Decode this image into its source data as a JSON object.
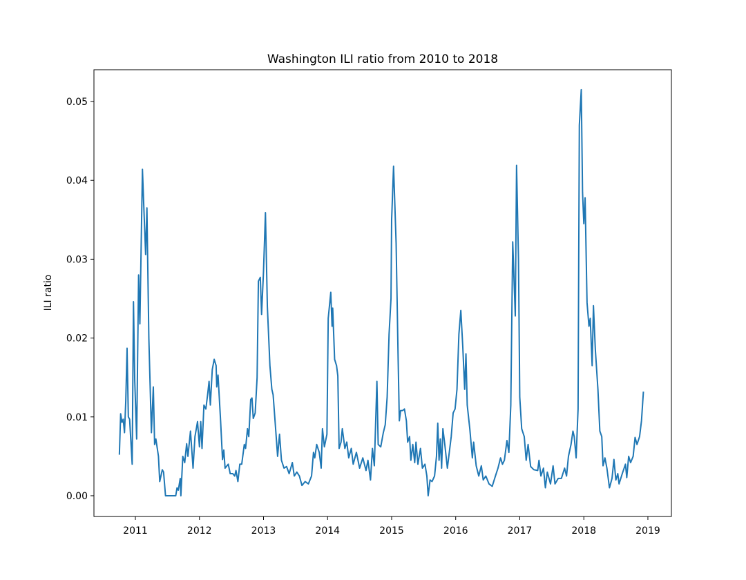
{
  "chart_data": {
    "type": "line",
    "title": "Washington ILI ratio from 2010 to 2018",
    "y_label": "ILI ratio",
    "x": [
      2010.75,
      2010.77,
      2010.79,
      2010.81,
      2010.83,
      2010.85,
      2010.87,
      2010.89,
      2010.91,
      2010.95,
      2010.97,
      2010.99,
      2011.02,
      2011.05,
      2011.07,
      2011.11,
      2011.13,
      2011.16,
      2011.18,
      2011.21,
      2011.25,
      2011.28,
      2011.3,
      2011.32,
      2011.36,
      2011.38,
      2011.42,
      2011.44,
      2011.47,
      2011.55,
      2011.63,
      2011.65,
      2011.67,
      2011.7,
      2011.71,
      2011.74,
      2011.77,
      2011.8,
      2011.82,
      2011.86,
      2011.9,
      2011.93,
      2011.97,
      2012.0,
      2012.02,
      2012.04,
      2012.07,
      2012.1,
      2012.13,
      2012.15,
      2012.17,
      2012.2,
      2012.23,
      2012.26,
      2012.27,
      2012.29,
      2012.33,
      2012.36,
      2012.38,
      2012.4,
      2012.45,
      2012.48,
      2012.52,
      2012.55,
      2012.57,
      2012.6,
      2012.63,
      2012.66,
      2012.7,
      2012.72,
      2012.75,
      2012.77,
      2012.8,
      2012.82,
      2012.84,
      2012.87,
      2012.9,
      2012.92,
      2012.95,
      2012.97,
      2013.0,
      2013.03,
      2013.06,
      2013.1,
      2013.13,
      2013.15,
      2013.18,
      2013.22,
      2013.25,
      2013.28,
      2013.32,
      2013.36,
      2013.4,
      2013.45,
      2013.48,
      2013.52,
      2013.56,
      2013.6,
      2013.65,
      2013.7,
      2013.75,
      2013.78,
      2013.8,
      2013.83,
      2013.87,
      2013.9,
      2013.92,
      2013.95,
      2013.99,
      2014.01,
      2014.05,
      2014.07,
      2014.08,
      2014.11,
      2014.14,
      2014.16,
      2014.18,
      2014.21,
      2014.23,
      2014.27,
      2014.3,
      2014.33,
      2014.37,
      2014.4,
      2014.45,
      2014.5,
      2014.55,
      2014.6,
      2014.63,
      2014.67,
      2014.7,
      2014.73,
      2014.77,
      2014.79,
      2014.83,
      2014.87,
      2014.9,
      2014.93,
      2014.96,
      2014.99,
      2015.0,
      2015.03,
      2015.07,
      2015.1,
      2015.12,
      2015.14,
      2015.17,
      2015.2,
      2015.23,
      2015.25,
      2015.28,
      2015.3,
      2015.33,
      2015.36,
      2015.38,
      2015.41,
      2015.45,
      2015.48,
      2015.52,
      2015.55,
      2015.57,
      2015.6,
      2015.63,
      2015.67,
      2015.7,
      2015.72,
      2015.74,
      2015.76,
      2015.78,
      2015.8,
      2015.83,
      2015.87,
      2015.9,
      2015.93,
      2015.96,
      2015.99,
      2016.02,
      2016.05,
      2016.08,
      2016.11,
      2016.14,
      2016.16,
      2016.18,
      2016.22,
      2016.26,
      2016.28,
      2016.32,
      2016.36,
      2016.4,
      2016.43,
      2016.47,
      2016.52,
      2016.57,
      2016.62,
      2016.66,
      2016.7,
      2016.73,
      2016.76,
      2016.8,
      2016.83,
      2016.86,
      2016.89,
      2016.93,
      2016.95,
      2016.98,
      2017.0,
      2017.03,
      2017.07,
      2017.1,
      2017.13,
      2017.17,
      2017.22,
      2017.28,
      2017.3,
      2017.33,
      2017.37,
      2017.4,
      2017.43,
      2017.48,
      2017.52,
      2017.55,
      2017.6,
      2017.65,
      2017.7,
      2017.73,
      2017.76,
      2017.8,
      2017.83,
      2017.85,
      2017.88,
      2017.91,
      2017.93,
      2017.96,
      2017.98,
      2018.0,
      2018.02,
      2018.05,
      2018.08,
      2018.1,
      2018.13,
      2018.15,
      2018.18,
      2018.22,
      2018.25,
      2018.28,
      2018.3,
      2018.33,
      2018.36,
      2018.4,
      2018.44,
      2018.47,
      2018.5,
      2018.53,
      2018.55,
      2018.6,
      2018.65,
      2018.67,
      2018.7,
      2018.73,
      2018.77,
      2018.8,
      2018.83,
      2018.87,
      2018.9,
      2018.93
    ],
    "series": [
      {
        "color": "#1f77b4",
        "values": [
          0.0052,
          0.0104,
          0.0093,
          0.0097,
          0.008,
          0.012,
          0.0187,
          0.01,
          0.0097,
          0.004,
          0.0246,
          0.0146,
          0.0072,
          0.028,
          0.0218,
          0.0414,
          0.037,
          0.0306,
          0.0365,
          0.02,
          0.008,
          0.0138,
          0.0065,
          0.0072,
          0.005,
          0.0018,
          0.0033,
          0.003,
          0,
          0,
          0,
          0.001,
          0.0007,
          0.0022,
          0,
          0.005,
          0.0042,
          0.0066,
          0.005,
          0.0082,
          0.0035,
          0.0075,
          0.0094,
          0.0062,
          0.0094,
          0.006,
          0.0115,
          0.011,
          0.013,
          0.0145,
          0.0115,
          0.016,
          0.0173,
          0.0165,
          0.0138,
          0.0153,
          0.0095,
          0.0046,
          0.0058,
          0.0035,
          0.004,
          0.0028,
          0.0028,
          0.0025,
          0.0032,
          0.0018,
          0.004,
          0.004,
          0.0065,
          0.006,
          0.0085,
          0.0075,
          0.0122,
          0.0124,
          0.0098,
          0.0105,
          0.015,
          0.0272,
          0.0277,
          0.023,
          0.0285,
          0.0359,
          0.024,
          0.0165,
          0.0135,
          0.0128,
          0.0095,
          0.005,
          0.0078,
          0.0045,
          0.0035,
          0.0037,
          0.0028,
          0.0042,
          0.0025,
          0.003,
          0.0025,
          0.0013,
          0.0018,
          0.0015,
          0.0025,
          0.0055,
          0.0048,
          0.0065,
          0.0055,
          0.0035,
          0.0085,
          0.0062,
          0.0078,
          0.0225,
          0.0258,
          0.0215,
          0.0238,
          0.0173,
          0.0165,
          0.0152,
          0.006,
          0.0068,
          0.0085,
          0.006,
          0.0068,
          0.0048,
          0.006,
          0.004,
          0.0055,
          0.0035,
          0.0048,
          0.0032,
          0.0045,
          0.002,
          0.006,
          0.0038,
          0.0145,
          0.0065,
          0.0062,
          0.008,
          0.009,
          0.0125,
          0.0205,
          0.025,
          0.035,
          0.0418,
          0.032,
          0.018,
          0.0095,
          0.0108,
          0.0108,
          0.011,
          0.0095,
          0.0068,
          0.0075,
          0.0045,
          0.0065,
          0.0042,
          0.0068,
          0.004,
          0.006,
          0.0035,
          0.004,
          0.0025,
          0,
          0.002,
          0.0018,
          0.0025,
          0.005,
          0.0092,
          0.0045,
          0.0072,
          0.0035,
          0.0085,
          0.0065,
          0.0035,
          0.0055,
          0.0075,
          0.0105,
          0.011,
          0.0135,
          0.0205,
          0.0235,
          0.019,
          0.0135,
          0.018,
          0.0115,
          0.0085,
          0.0048,
          0.0068,
          0.0038,
          0.0025,
          0.0038,
          0.002,
          0.0025,
          0.0015,
          0.0012,
          0.0025,
          0.0035,
          0.0048,
          0.004,
          0.0045,
          0.007,
          0.0055,
          0.0115,
          0.0322,
          0.0228,
          0.0419,
          0.03,
          0.0125,
          0.0085,
          0.0075,
          0.0045,
          0.0065,
          0.0037,
          0.0033,
          0.0032,
          0.0045,
          0.0025,
          0.0035,
          0.001,
          0.003,
          0.0015,
          0.0038,
          0.0015,
          0.0022,
          0.0022,
          0.0035,
          0.0025,
          0.005,
          0.0065,
          0.0082,
          0.0075,
          0.0048,
          0.011,
          0.047,
          0.0515,
          0.0385,
          0.0345,
          0.0378,
          0.0245,
          0.0215,
          0.0225,
          0.0165,
          0.0241,
          0.0185,
          0.0135,
          0.0082,
          0.0075,
          0.0038,
          0.0048,
          0.0035,
          0.001,
          0.0022,
          0.0046,
          0.002,
          0.0028,
          0.0015,
          0.0028,
          0.004,
          0.0023,
          0.005,
          0.0042,
          0.005,
          0.0074,
          0.0065,
          0.0075,
          0.0095,
          0.0132
        ]
      }
    ],
    "xlim": [
      2010.353,
      2019.367
    ],
    "ylim": [
      -0.00263,
      0.05403
    ],
    "xticks": [
      2011,
      2012,
      2013,
      2014,
      2015,
      2016,
      2017,
      2018,
      2019
    ],
    "yticks": [
      {
        "value": 0,
        "label": "0.00"
      },
      0.01,
      0.02,
      0.03,
      0.04,
      0.05
    ]
  }
}
